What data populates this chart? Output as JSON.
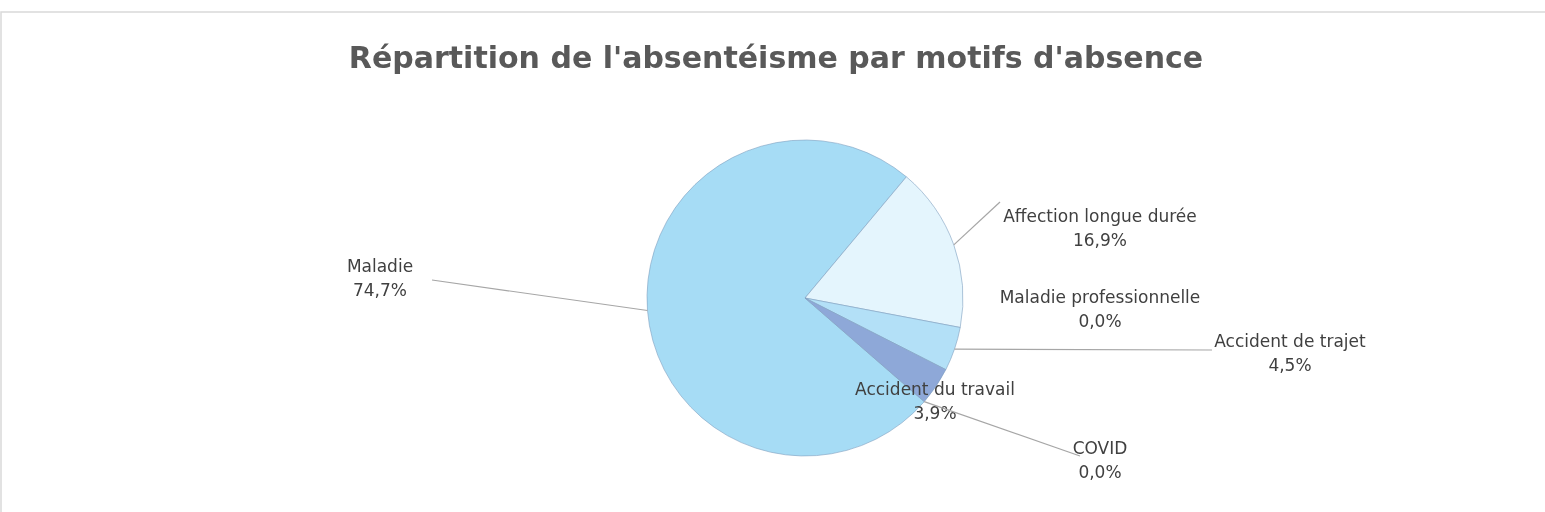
{
  "chart_data": {
    "type": "pie",
    "title": "Répartition de l'absentéisme par motifs d'absence",
    "categories": [
      "Maladie",
      "Affection longue durée",
      "Maladie professionnelle",
      "Accident de trajet",
      "Accident du travail",
      "COVID"
    ],
    "values": [
      74.7,
      16.9,
      0.0,
      4.5,
      3.9,
      0.0
    ],
    "value_labels": [
      "74,7%",
      "16,9%",
      "0,0%",
      "4,5%",
      "3,9%",
      "0,0%"
    ],
    "colors": [
      "#a6dcf5",
      "#e4f5fd",
      "#c9ebfa",
      "#b3e0f7",
      "#8ea8d8",
      "#7e9ccf"
    ]
  }
}
